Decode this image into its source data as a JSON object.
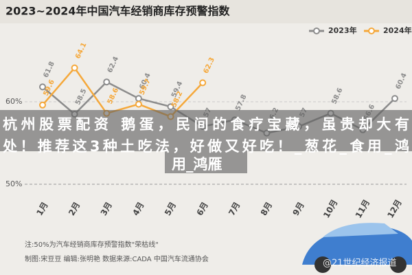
{
  "chart_data": {
    "type": "line",
    "title": "2023~2024年中国汽车经销商库存预警指数",
    "categories": [
      "1月",
      "2月",
      "3月",
      "4月",
      "5月",
      "6月",
      "7月",
      "8月",
      "9月",
      "10月",
      "11月",
      "12月"
    ],
    "series": [
      {
        "name": "2023年",
        "color": "#8c8c8c",
        "values": [
          61.8,
          58.5,
          62.4,
          60.4,
          59.4,
          57.0,
          57.8,
          56.2,
          57.0,
          58.6,
          56.6,
          60.4
        ]
      },
      {
        "name": "2024年",
        "color": "#f5a83a",
        "values": [
          59.6,
          64.1,
          58.6,
          59.7,
          58.2,
          62.3,
          null,
          null,
          null,
          null,
          null,
          null
        ]
      }
    ],
    "ylim": [
      48,
      68
    ],
    "yticks": [
      {
        "value": 50,
        "label": "50%"
      },
      {
        "value": 60,
        "label": "60%"
      }
    ],
    "grid": true,
    "legend": "top-right",
    "note": "注:50%为汽车经销商库存预警指数\"荣枯线\"",
    "credits": "制图:宋豆豆  编辑:张明艳  数据来源:CADA 中国汽车流通协会",
    "watermark": "@21世纪经济报道"
  },
  "overlay": {
    "lines": [
      "杭州股票配资 鹅蛋，民间的食疗宝藏，虽贵却大有",
      "处！推荐这3种土吃法，好做又好吃！_葱花_食用_鸿",
      "用_鸿雁"
    ]
  }
}
